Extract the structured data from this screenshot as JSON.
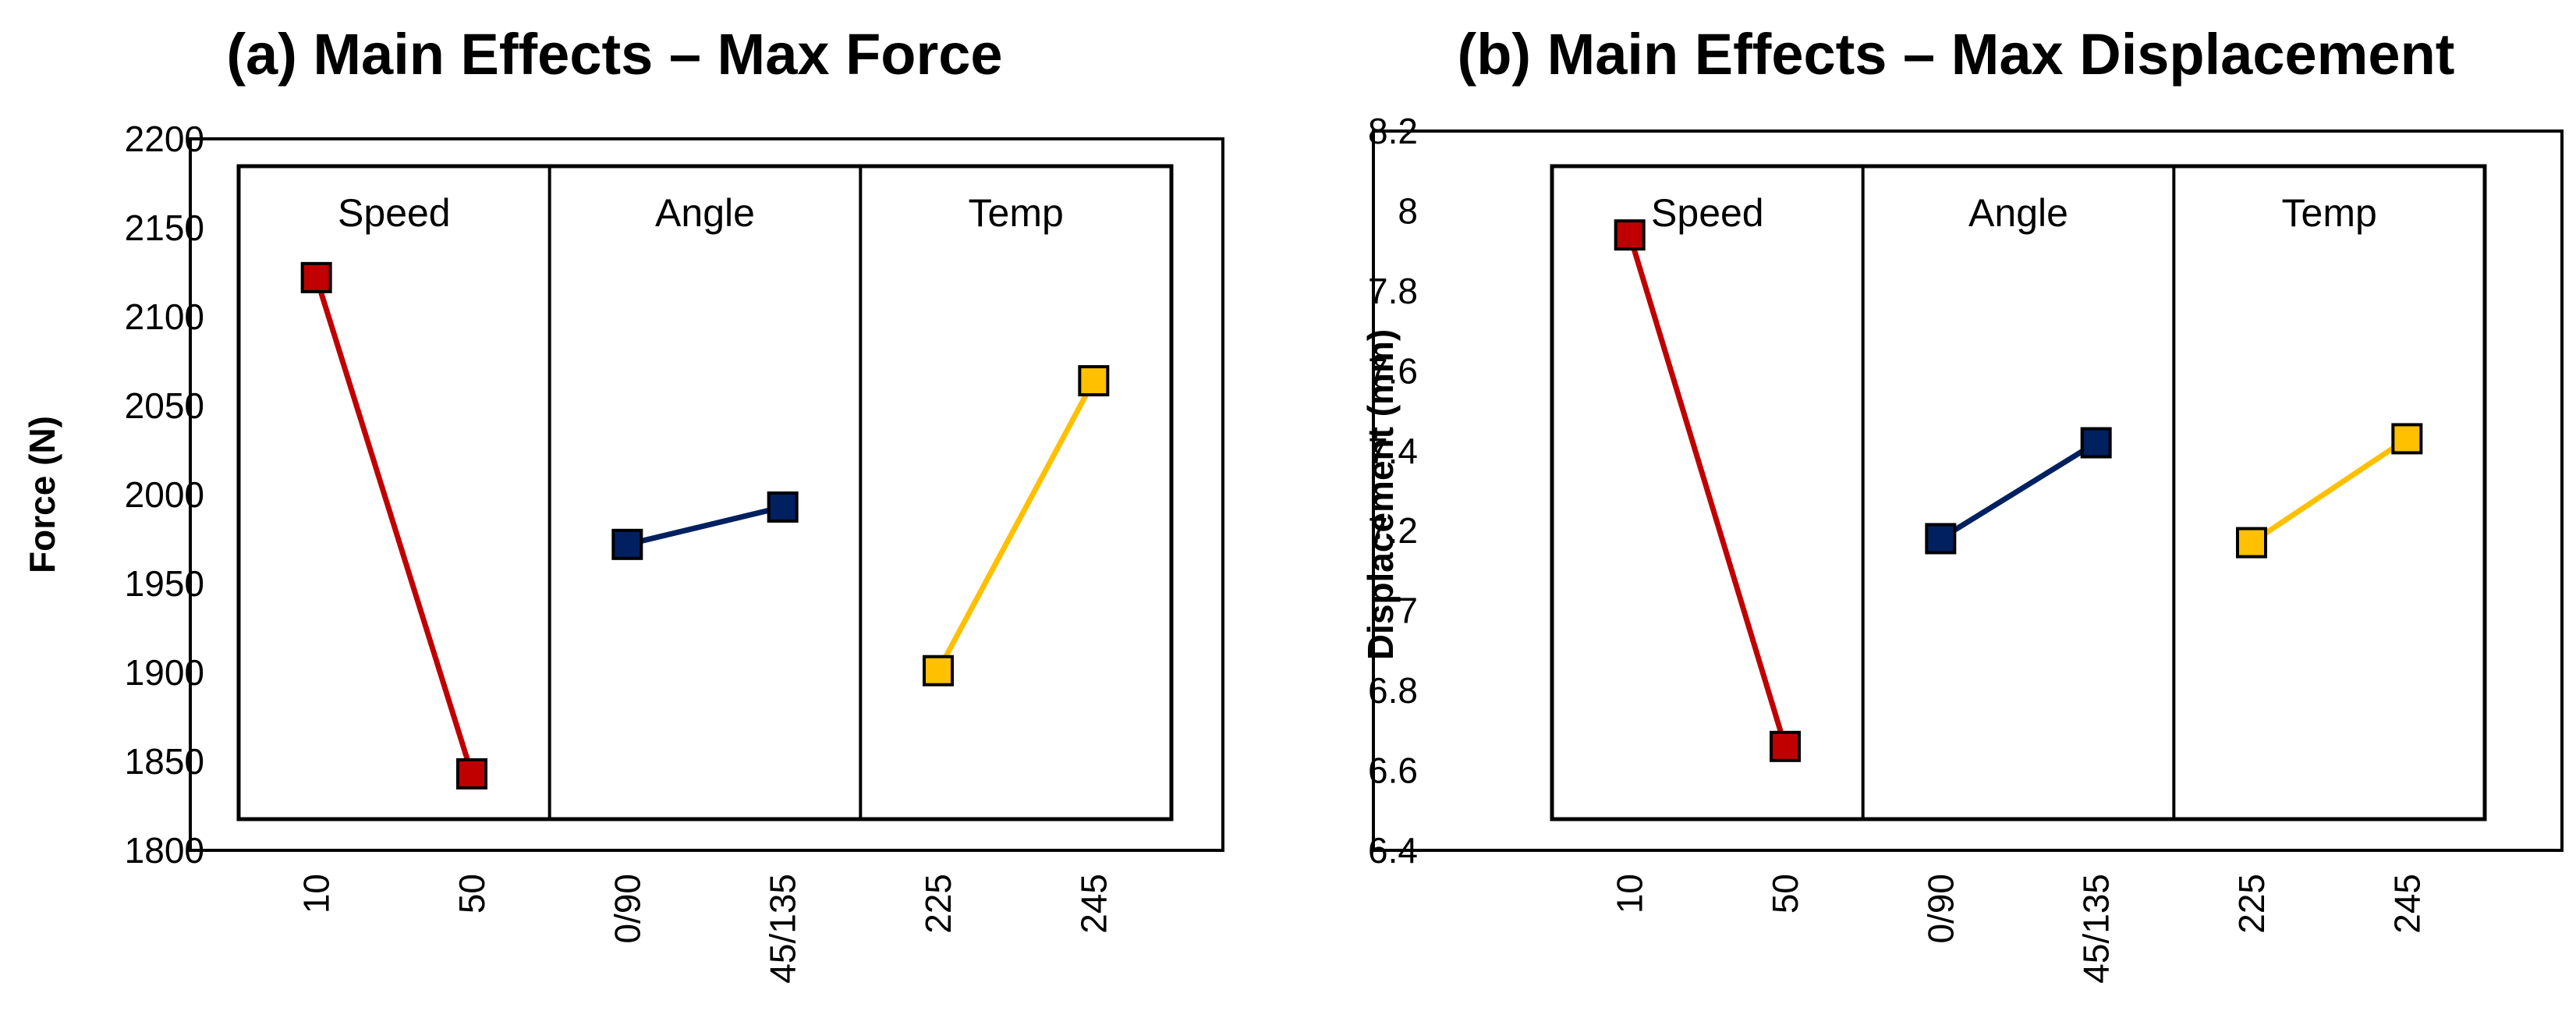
{
  "chart_data": [
    {
      "type": "line",
      "title": "(a) Main Effects – Max Force",
      "xlabel": "",
      "ylabel": "Force (N)",
      "ylim": [
        1800,
        2200
      ],
      "yticks": [
        1800,
        1850,
        1900,
        1950,
        2000,
        2050,
        2100,
        2150,
        2200
      ],
      "categories": [
        "10",
        "50",
        "0/90",
        "45/135",
        "225",
        "245"
      ],
      "grid": false,
      "legend": "none",
      "groups": [
        {
          "name": "Speed",
          "color": "#C00000",
          "marker": "square",
          "categories": [
            "10",
            "50"
          ],
          "values": [
            2122,
            1843
          ]
        },
        {
          "name": "Angle",
          "color": "#002060",
          "marker": "square",
          "categories": [
            "0/90",
            "45/135"
          ],
          "values": [
            1972,
            1993
          ]
        },
        {
          "name": "Temp",
          "color": "#FFC000",
          "marker": "square",
          "categories": [
            "225",
            "245"
          ],
          "values": [
            1901,
            2064
          ]
        }
      ]
    },
    {
      "type": "line",
      "title": "(b) Main Effects – Max Displacement",
      "xlabel": "",
      "ylabel": "Displacement (mm)",
      "ylim": [
        6.4,
        8.2
      ],
      "yticks": [
        "6.4",
        "6.6",
        "6.8",
        "7",
        "7.2",
        "7.4",
        "7.6",
        "7.8",
        "8",
        "8.2"
      ],
      "categories": [
        "10",
        "50",
        "0/90",
        "45/135",
        "225",
        "245"
      ],
      "grid": false,
      "legend": "none",
      "groups": [
        {
          "name": "Speed",
          "color": "#C00000",
          "marker": "square",
          "categories": [
            "10",
            "50"
          ],
          "values": [
            7.94,
            6.66
          ]
        },
        {
          "name": "Angle",
          "color": "#002060",
          "marker": "square",
          "categories": [
            "0/90",
            "45/135"
          ],
          "values": [
            7.18,
            7.42
          ]
        },
        {
          "name": "Temp",
          "color": "#FFC000",
          "marker": "square",
          "categories": [
            "225",
            "245"
          ],
          "values": [
            7.17,
            7.43
          ]
        }
      ]
    }
  ]
}
